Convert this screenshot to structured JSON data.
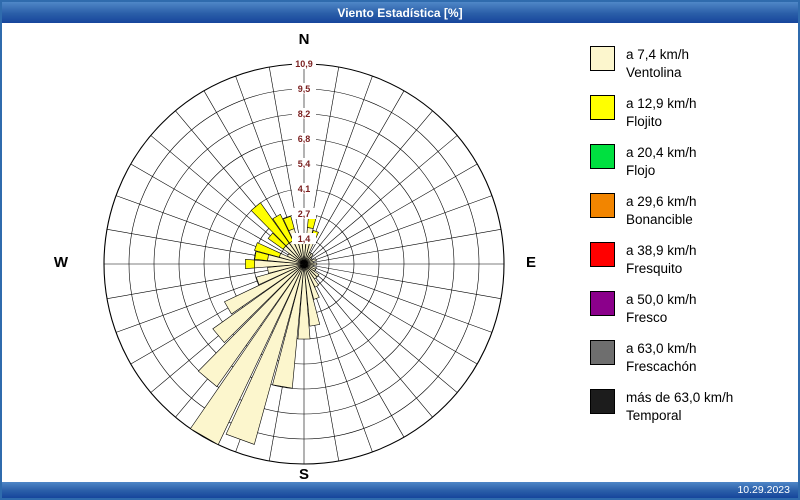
{
  "window": {
    "title": "Viento Estadística [%]",
    "date": "10.29.2023"
  },
  "compass": {
    "north": "N",
    "east": "E",
    "south": "S",
    "west": "W"
  },
  "legend": {
    "items": [
      {
        "color": "#FCF6CD",
        "speed": "a 7,4 km/h",
        "name": "Ventolina"
      },
      {
        "color": "#FFFF00",
        "speed": "a 12,9 km/h",
        "name": "Flojito"
      },
      {
        "color": "#00E040",
        "speed": "a 20,4 km/h",
        "name": "Flojo"
      },
      {
        "color": "#F28500",
        "speed": "a 29,6 km/h",
        "name": "Bonancible"
      },
      {
        "color": "#FF0000",
        "speed": "a 38,9 km/h",
        "name": "Fresquito"
      },
      {
        "color": "#8B008B",
        "speed": "a 50,0 km/h",
        "name": "Fresco"
      },
      {
        "color": "#6E6E6E",
        "speed": "a 63,0 km/h",
        "name": "Frescachón"
      },
      {
        "color": "#1C1C1C",
        "speed": "más de 63,0 km/h",
        "name": "Temporal"
      }
    ]
  },
  "chart_data": {
    "type": "windrose-polar",
    "title": "Viento Estadística [%]",
    "units": "%",
    "sector_width_deg": 10,
    "max": 10.9,
    "ring_values": [
      1.4,
      2.7,
      4.1,
      5.4,
      6.8,
      8.2,
      9.5,
      10.9
    ],
    "ring_labels": [
      "1,4",
      "2,7",
      "4,1",
      "5,4",
      "6,8",
      "8,2",
      "9,5",
      "10,9"
    ],
    "ring_label_color": "#7a1f1f",
    "directions_deg": [
      0,
      10,
      20,
      30,
      40,
      50,
      60,
      70,
      80,
      90,
      100,
      110,
      120,
      130,
      140,
      150,
      160,
      170,
      180,
      190,
      200,
      210,
      220,
      230,
      240,
      250,
      260,
      270,
      280,
      290,
      300,
      310,
      320,
      330,
      340,
      350
    ],
    "series": [
      {
        "name": "Ventolina",
        "color": "#FCF6CD",
        "values": [
          1.4,
          2.0,
          1.4,
          0.7,
          0.7,
          0.5,
          0.5,
          0.7,
          0.5,
          0.7,
          0.5,
          0.7,
          0.7,
          1.0,
          1.0,
          1.4,
          2.0,
          3.4,
          4.1,
          6.8,
          10.2,
          10.9,
          8.2,
          6.1,
          4.8,
          2.7,
          2.0,
          2.7,
          2.0,
          1.4,
          1.0,
          1.4,
          1.4,
          1.4,
          2.0,
          1.4
        ]
      },
      {
        "name": "Flojito",
        "color": "#FFFF00",
        "values": [
          0,
          0.7,
          0.5,
          0,
          0,
          0,
          0,
          0,
          0,
          0,
          0,
          0,
          0,
          0,
          0,
          0,
          0,
          0,
          0,
          0,
          0,
          0,
          0,
          0,
          0,
          0,
          0,
          0.5,
          0.7,
          1.4,
          0,
          1.0,
          2.7,
          1.6,
          0.7,
          0
        ]
      }
    ]
  }
}
